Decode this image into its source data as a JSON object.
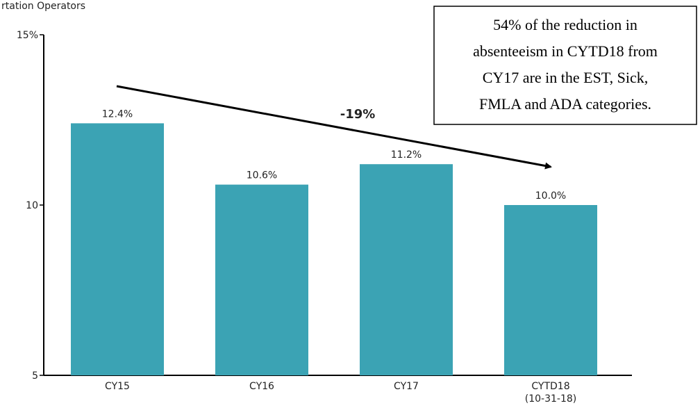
{
  "chart_data": {
    "type": "bar",
    "title": "rtation Operators",
    "categories": [
      "CY15",
      "CY16",
      "CY17",
      "CYTD18\n(10-31-18)"
    ],
    "values": [
      12.4,
      10.6,
      11.2,
      10.0
    ],
    "value_labels": [
      "12.4%",
      "10.6%",
      "11.2%",
      "10.0%"
    ],
    "color": "#3ba3b4",
    "ylim": [
      5,
      15
    ],
    "yticks": [
      {
        "value": 15,
        "label": "15%"
      },
      10,
      5
    ],
    "arrow_label": "-19%",
    "note_lines": [
      "54% of the reduction in",
      "absenteeism in CYTD18 from",
      "CY17 are in the EST, Sick,",
      "FMLA and ADA categories."
    ]
  }
}
